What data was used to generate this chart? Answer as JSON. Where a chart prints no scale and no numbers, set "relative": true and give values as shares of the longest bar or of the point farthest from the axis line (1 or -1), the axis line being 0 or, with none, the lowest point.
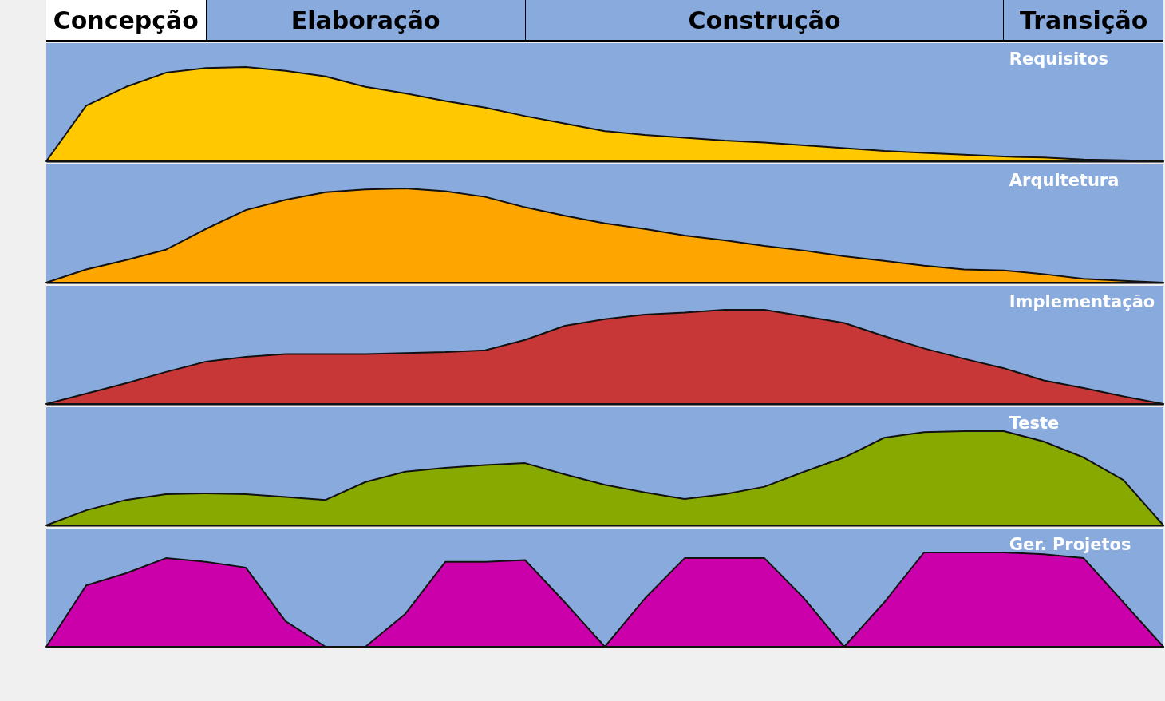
{
  "chart_data": [
    {
      "type": "area",
      "relative": true,
      "categories": [
        null,
        null,
        null,
        null,
        null,
        null,
        null,
        null,
        null,
        null,
        null,
        null,
        null,
        null,
        null,
        null,
        null,
        null,
        null,
        null,
        null,
        null,
        null,
        null,
        null,
        null,
        null,
        null,
        null
      ],
      "annotations": [
        "Concepção",
        "Elaboração",
        "Construção",
        "Transição"
      ],
      "series": [
        {
          "name": "Requisitos",
          "color": "#ffc800",
          "values": [
            0,
            0.59,
            0.79,
            0.94,
            0.99,
            1,
            0.96,
            0.9,
            0.79,
            0.72,
            0.64,
            0.57,
            0.48,
            0.4,
            0.32,
            0.28,
            0.25,
            0.22,
            0.2,
            0.17,
            0.14,
            0.11,
            0.09,
            0.07,
            0.05,
            0.04,
            0.02,
            0.01,
            0
          ]
        }
      ]
    },
    {
      "type": "area",
      "relative": true,
      "categories": [
        null,
        null,
        null,
        null,
        null,
        null,
        null,
        null,
        null,
        null,
        null,
        null,
        null,
        null,
        null,
        null,
        null,
        null,
        null,
        null,
        null,
        null,
        null,
        null,
        null,
        null,
        null,
        null,
        null
      ],
      "series": [
        {
          "name": "Arquitetura",
          "color": "#ffa500",
          "values": [
            0,
            0.14,
            0.24,
            0.35,
            0.57,
            0.77,
            0.88,
            0.96,
            0.99,
            1,
            0.97,
            0.91,
            0.8,
            0.71,
            0.63,
            0.57,
            0.5,
            0.45,
            0.39,
            0.34,
            0.28,
            0.23,
            0.18,
            0.14,
            0.13,
            0.09,
            0.04,
            0.02,
            0
          ]
        }
      ]
    },
    {
      "type": "area",
      "relative": true,
      "categories": [
        null,
        null,
        null,
        null,
        null,
        null,
        null,
        null,
        null,
        null,
        null,
        null,
        null,
        null,
        null,
        null,
        null,
        null,
        null,
        null,
        null,
        null,
        null,
        null,
        null,
        null,
        null,
        null,
        null
      ],
      "series": [
        {
          "name": "Implementação",
          "color": "#c83737",
          "values": [
            0,
            0.11,
            0.22,
            0.34,
            0.45,
            0.5,
            0.53,
            0.53,
            0.53,
            0.54,
            0.55,
            0.57,
            0.68,
            0.83,
            0.9,
            0.95,
            0.97,
            1,
            1,
            0.93,
            0.86,
            0.72,
            0.59,
            0.48,
            0.38,
            0.25,
            0.17,
            0.08,
            0
          ]
        }
      ]
    },
    {
      "type": "area",
      "relative": true,
      "categories": [
        null,
        null,
        null,
        null,
        null,
        null,
        null,
        null,
        null,
        null,
        null,
        null,
        null,
        null,
        null,
        null,
        null,
        null,
        null,
        null,
        null,
        null,
        null,
        null,
        null,
        null,
        null,
        null,
        null
      ],
      "series": [
        {
          "name": "Teste",
          "color": "#88aa00",
          "values": [
            0,
            0.16,
            0.27,
            0.33,
            0.34,
            0.33,
            0.3,
            0.27,
            0.46,
            0.57,
            0.61,
            0.64,
            0.66,
            0.54,
            0.43,
            0.35,
            0.28,
            0.33,
            0.41,
            0.57,
            0.72,
            0.93,
            0.99,
            1,
            1,
            0.89,
            0.72,
            0.48,
            0
          ]
        }
      ]
    },
    {
      "type": "area",
      "relative": true,
      "categories": [
        null,
        null,
        null,
        null,
        null,
        null,
        null,
        null,
        null,
        null,
        null,
        null,
        null,
        null,
        null,
        null,
        null,
        null,
        null,
        null,
        null,
        null,
        null,
        null,
        null,
        null,
        null,
        null,
        null
      ],
      "series": [
        {
          "name": "Ger. Projetos",
          "color": "#cc00aa",
          "values": [
            0,
            0.65,
            0.78,
            0.94,
            0.9,
            0.84,
            0.27,
            0,
            0,
            0.35,
            0.9,
            0.9,
            0.92,
            0.47,
            0,
            0.51,
            0.94,
            0.94,
            0.94,
            0.51,
            0,
            0.47,
            1,
            1,
            1,
            0.98,
            0.94,
            0.47,
            0
          ]
        }
      ]
    }
  ]
}
